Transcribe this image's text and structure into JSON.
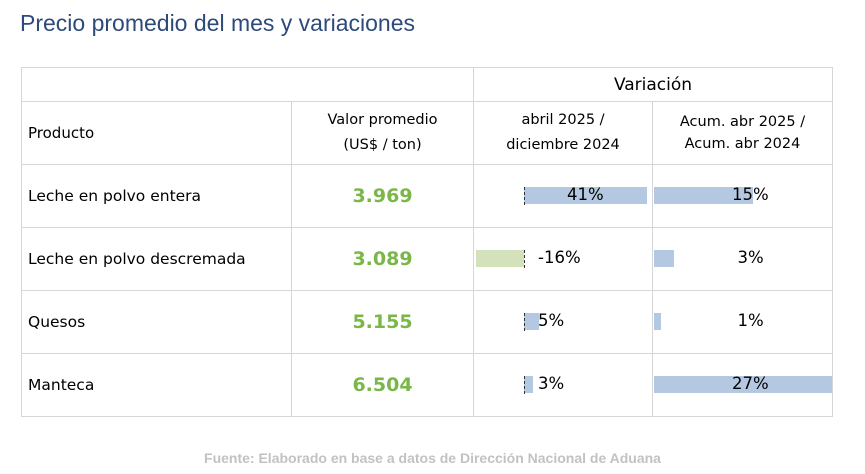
{
  "title": "Precio promedio del mes y variaciones",
  "table": {
    "variacion_header": "Variación",
    "col_producto": "Producto",
    "col_valor_line1": "Valor promedio",
    "col_valor_line2": "(US$ / ton)",
    "col_var1_line1": "abril 2025 /",
    "col_var1_line2": "diciembre 2024",
    "col_var2_line1": "Acum. abr 2025 /",
    "col_var2_line2": "Acum. abr 2024",
    "rows": [
      {
        "producto": "Leche en polvo entera",
        "valor": "3.969",
        "var1_label": "41%",
        "var1": 41,
        "var2_label": "15%",
        "var2": 15
      },
      {
        "producto": "Leche en polvo descremada",
        "valor": "3.089",
        "var1_label": "-16%",
        "var1": -16,
        "var2_label": "3%",
        "var2": 3
      },
      {
        "producto": "Quesos",
        "valor": "5.155",
        "var1_label": "5%",
        "var1": 5,
        "var2_label": "1%",
        "var2": 1
      },
      {
        "producto": "Manteca",
        "valor": "6.504",
        "var1_label": "3%",
        "var1": 3,
        "var2_label": "27%",
        "var2": 27
      }
    ]
  },
  "source": "Fuente: Elaborado en base a datos de Dirección Nacional de Aduana",
  "colors": {
    "title": "#2e4a7a",
    "value": "#7ab648",
    "bar_positive": "#b4c9e1",
    "bar_negative": "#d3e2bb",
    "source": "#c2c2c2"
  }
}
